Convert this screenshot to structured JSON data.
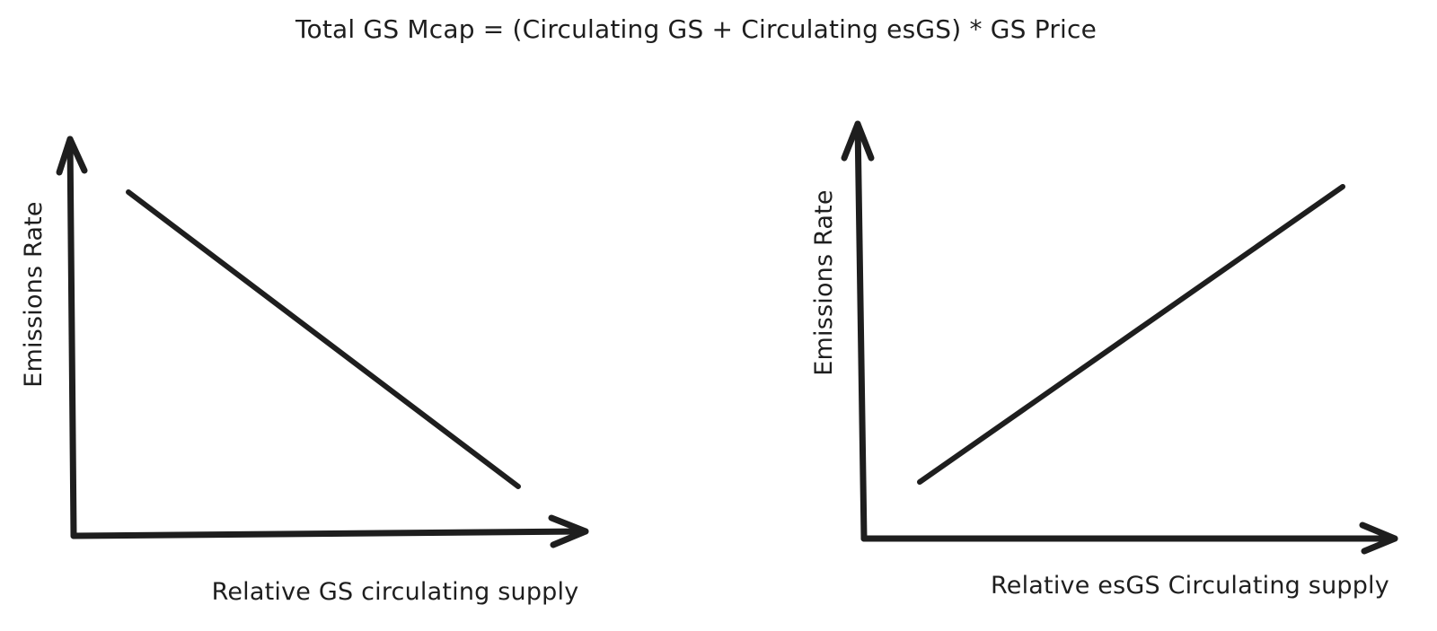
{
  "title": "Total GS Mcap = (Circulating GS + Circulating esGS) * GS Price",
  "charts": [
    {
      "x_axis_label": "Relative GS circulating supply",
      "y_axis_label": "Emissions Rate",
      "relationship": "decreasing"
    },
    {
      "x_axis_label": "Relative esGS Circulating supply",
      "y_axis_label": "Emissions Rate",
      "relationship": "increasing"
    }
  ],
  "colors": {
    "ink": "#1e1e1e",
    "background": "#ffffff"
  }
}
